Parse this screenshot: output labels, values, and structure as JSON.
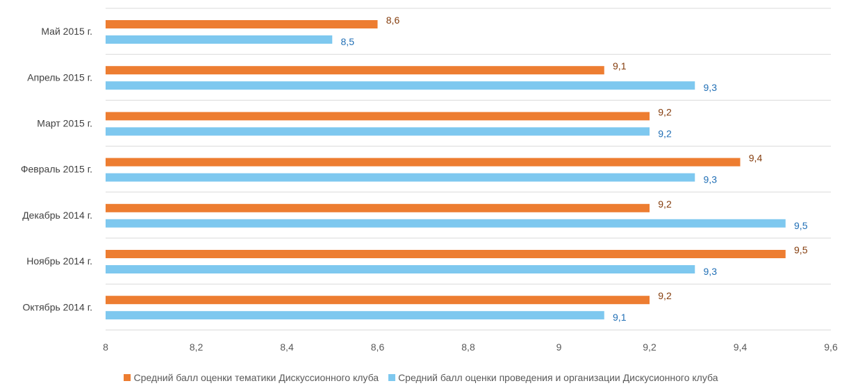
{
  "chart_data": {
    "type": "bar",
    "orientation": "horizontal",
    "categories": [
      "Октябрь 2014 г.",
      "Ноябрь 2014 г.",
      "Декабрь 2014 г.",
      "Февраль 2015 г.",
      "Март 2015 г.",
      "Апрель 2015 г.",
      "Май 2015 г."
    ],
    "series": [
      {
        "name": "Средний балл оценки тематики Дискуссионного клуба",
        "values": [
          9.2,
          9.5,
          9.2,
          9.4,
          9.2,
          9.1,
          8.6
        ],
        "color": "#ED7D31",
        "label_color": "#843C0C"
      },
      {
        "name": "Средний балл оценки проведения и организации Дискусионного клуба",
        "values": [
          9.1,
          9.3,
          9.5,
          9.3,
          9.2,
          9.3,
          8.5
        ],
        "color": "#7EC8EF",
        "label_color": "#1F6EB5"
      }
    ],
    "xlim": [
      8,
      9.6
    ],
    "x_ticks": [
      "8",
      "8,2",
      "8,4",
      "8,6",
      "8,8",
      "9",
      "9,2",
      "9,4",
      "9,6"
    ],
    "grid": "horizontal",
    "legend_position": "bottom",
    "decimal_separator": ","
  }
}
